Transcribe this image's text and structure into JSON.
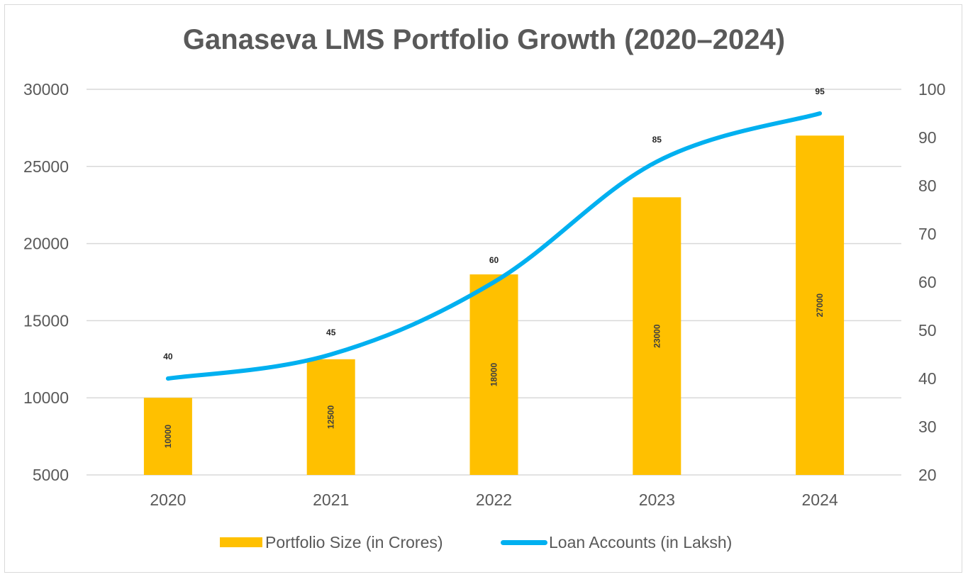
{
  "chart_data": {
    "type": "bar",
    "title": "Ganaseva LMS Portfolio Growth (2020–2024)",
    "categories": [
      "2020",
      "2021",
      "2022",
      "2023",
      "2024"
    ],
    "series": [
      {
        "name": "Portfolio Size (in Crores)",
        "type": "bar",
        "axis": "left",
        "color": "#FFC000",
        "values": [
          10000,
          12500,
          18000,
          23000,
          27000
        ],
        "labels": [
          "10000",
          "12500",
          "18000",
          "23000",
          "27000"
        ]
      },
      {
        "name": "Loan Accounts (in Laksh)",
        "type": "line",
        "axis": "right",
        "color": "#00B0F0",
        "values": [
          40,
          45,
          60,
          85,
          95
        ],
        "labels": [
          "40",
          "45",
          "60",
          "85",
          "95"
        ]
      }
    ],
    "y_left": {
      "lim": [
        5000,
        30000
      ],
      "ticks": [
        5000,
        10000,
        15000,
        20000,
        25000,
        30000
      ],
      "tick_labels": [
        "5000",
        "10000",
        "15000",
        "20000",
        "25000",
        "30000"
      ]
    },
    "y_right": {
      "lim": [
        20,
        100
      ],
      "ticks": [
        20,
        30,
        40,
        50,
        60,
        70,
        80,
        90,
        100
      ],
      "tick_labels": [
        "20",
        "30",
        "40",
        "50",
        "60",
        "70",
        "80",
        "90",
        "100"
      ]
    },
    "grid": true,
    "legend_position": "bottom",
    "colors": {
      "gridline": "#d9d9d9",
      "text": "#595959"
    }
  }
}
